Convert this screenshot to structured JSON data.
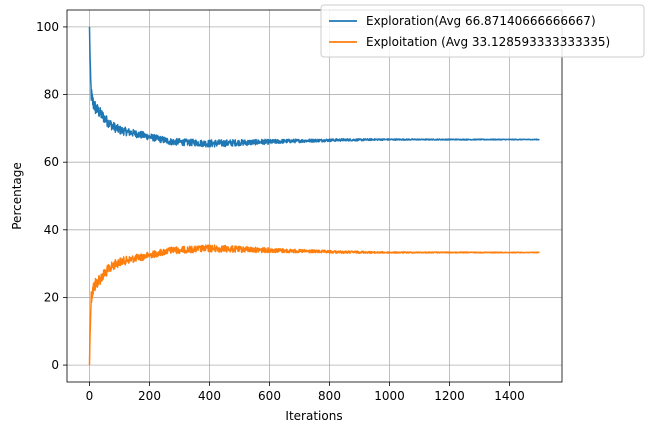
{
  "chart_data": {
    "type": "line",
    "title": "",
    "xlabel": "Iterations",
    "ylabel": "Percentage",
    "xlim": [
      -75,
      1575
    ],
    "ylim": [
      -5,
      105
    ],
    "xticks": [
      0,
      200,
      400,
      600,
      800,
      1000,
      1200,
      1400
    ],
    "yticks": [
      0,
      20,
      40,
      60,
      80,
      100
    ],
    "grid": true,
    "legend_position": "top-right",
    "series": [
      {
        "name": "Exploration(Avg 66.87140666666667)",
        "color": "#1f77b4",
        "x": [
          0,
          3,
          6,
          10,
          15,
          20,
          30,
          40,
          50,
          60,
          80,
          100,
          125,
          150,
          175,
          200,
          225,
          250,
          275,
          300,
          325,
          350,
          375,
          400,
          425,
          450,
          475,
          500,
          525,
          550,
          575,
          600,
          650,
          700,
          750,
          800,
          850,
          900,
          950,
          1000,
          1050,
          1100,
          1150,
          1200,
          1250,
          1300,
          1350,
          1400,
          1450,
          1500
        ],
        "y": [
          100,
          85,
          80,
          78,
          77,
          76,
          75,
          74,
          73,
          72,
          70.5,
          69.5,
          69,
          68.5,
          68,
          67.5,
          67,
          66.5,
          66,
          66,
          65.8,
          65.8,
          65.6,
          65.5,
          65.6,
          65.6,
          65.7,
          65.8,
          65.8,
          65.9,
          66,
          66,
          66.2,
          66.3,
          66.4,
          66.5,
          66.6,
          66.6,
          66.7,
          66.7,
          66.7,
          66.7,
          66.7,
          66.7,
          66.7,
          66.7,
          66.7,
          66.7,
          66.7,
          66.7
        ],
        "noise": [
          0,
          3,
          2.5,
          2.5,
          2.2,
          2,
          1.8,
          1.7,
          1.6,
          1.5,
          1.4,
          1.3,
          1.2,
          1.1,
          1.1,
          1,
          1,
          1,
          1,
          1,
          1,
          1,
          1,
          1.1,
          1.1,
          1,
          1,
          0.9,
          0.9,
          0.8,
          0.8,
          0.7,
          0.6,
          0.5,
          0.45,
          0.4,
          0.35,
          0.3,
          0.25,
          0.2,
          0.18,
          0.16,
          0.15,
          0.14,
          0.13,
          0.12,
          0.12,
          0.11,
          0.1,
          0.1
        ]
      },
      {
        "name": "Exploitation (Avg 33.128593333333335)",
        "color": "#ff7f0e",
        "x": [
          0,
          3,
          6,
          10,
          15,
          20,
          30,
          40,
          50,
          60,
          80,
          100,
          125,
          150,
          175,
          200,
          225,
          250,
          275,
          300,
          325,
          350,
          375,
          400,
          425,
          450,
          475,
          500,
          525,
          550,
          575,
          600,
          650,
          700,
          750,
          800,
          850,
          900,
          950,
          1000,
          1050,
          1100,
          1150,
          1200,
          1250,
          1300,
          1350,
          1400,
          1450,
          1500
        ],
        "y": [
          0,
          15,
          20,
          22,
          23,
          24,
          25,
          26,
          27,
          28,
          29.5,
          30.5,
          31,
          31.5,
          32,
          32.5,
          33,
          33.5,
          34,
          34,
          34.2,
          34.2,
          34.4,
          34.5,
          34.4,
          34.4,
          34.3,
          34.2,
          34.2,
          34.1,
          34,
          34,
          33.8,
          33.7,
          33.6,
          33.5,
          33.4,
          33.4,
          33.3,
          33.3,
          33.3,
          33.3,
          33.3,
          33.3,
          33.3,
          33.3,
          33.3,
          33.3,
          33.3,
          33.3
        ],
        "noise": [
          0,
          3,
          2.5,
          2.5,
          2.2,
          2,
          1.8,
          1.7,
          1.6,
          1.5,
          1.4,
          1.3,
          1.2,
          1.1,
          1.1,
          1,
          1,
          1,
          1,
          1,
          1,
          1,
          1,
          1.1,
          1.1,
          1,
          1,
          0.9,
          0.9,
          0.8,
          0.8,
          0.7,
          0.6,
          0.5,
          0.45,
          0.4,
          0.35,
          0.3,
          0.25,
          0.2,
          0.18,
          0.16,
          0.15,
          0.14,
          0.13,
          0.12,
          0.12,
          0.11,
          0.1,
          0.1
        ]
      }
    ]
  }
}
